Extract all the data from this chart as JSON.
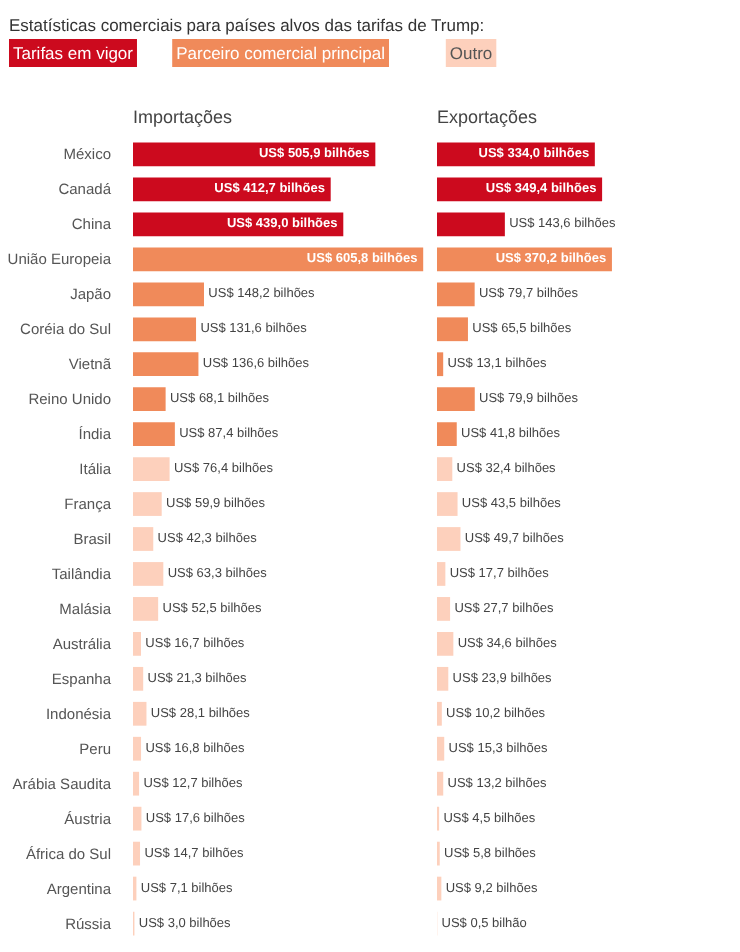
{
  "chart_data": [
    {
      "type": "bar",
      "orientation": "horizontal",
      "title": "Estatísticas comerciais para países alvos das tarifas de Trump:",
      "subtitle": "Importações",
      "legend": "top left",
      "grid": false,
      "categories": [
        "México",
        "Canadá",
        "China",
        "União Europeia",
        "Japão",
        "Coréia do Sul",
        "Vietnã",
        "Reino Unido",
        "Índia",
        "Itália",
        "França",
        "Brasil",
        "Tailândia",
        "Malásia",
        "Austrália",
        "Espanha",
        "Indonésia",
        "Peru",
        "Arábia Saudita",
        "Áustria",
        "África do Sul",
        "Argentina",
        "Rússia"
      ],
      "series": [
        {
          "name": "Tarifas em vigor",
          "color": "#cc0a1e",
          "values": [
            505.9,
            412.7,
            439.0,
            null,
            null,
            null,
            null,
            null,
            null,
            null,
            null,
            null,
            null,
            null,
            null,
            null,
            null,
            null,
            null,
            null,
            null,
            null,
            null
          ],
          "value_labels": [
            "US$ 505,9 bilhões",
            "US$ 412,7 bilhões",
            "US$ 439,0 bilhões",
            null,
            null,
            null,
            null,
            null,
            null,
            null,
            null,
            null,
            null,
            null,
            null,
            null,
            null,
            null,
            null,
            null,
            null,
            null,
            null
          ]
        },
        {
          "name": "Parceiro comercial principal",
          "color": "#f08a5a",
          "values": [
            null,
            null,
            null,
            605.8,
            148.2,
            131.6,
            136.6,
            68.1,
            87.4,
            null,
            null,
            null,
            null,
            null,
            null,
            null,
            null,
            null,
            null,
            null,
            null,
            null,
            null
          ],
          "value_labels": [
            null,
            null,
            null,
            "US$ 605,8 bilhões",
            "US$ 148,2 bilhões",
            "US$ 131,6 bilhões",
            "US$ 136,6 bilhões",
            "US$ 68,1 bilhões",
            "US$ 87,4 bilhões",
            null,
            null,
            null,
            null,
            null,
            null,
            null,
            null,
            null,
            null,
            null,
            null,
            null,
            null
          ]
        },
        {
          "name": "Outro",
          "color": "#fdd0bc",
          "values": [
            null,
            null,
            null,
            null,
            null,
            null,
            null,
            null,
            null,
            76.4,
            59.9,
            42.3,
            63.3,
            52.5,
            16.7,
            21.3,
            28.1,
            16.8,
            12.7,
            17.6,
            14.7,
            7.1,
            3.0
          ],
          "value_labels": [
            null,
            null,
            null,
            null,
            null,
            null,
            null,
            null,
            null,
            "US$ 76,4 bilhões",
            "US$ 59,9 bilhões",
            "US$ 42,3 bilhões",
            "US$ 63,3 bilhões",
            "US$ 52,5 bilhões",
            "US$ 16,7 bilhões",
            "US$ 21,3 bilhões",
            "US$ 28,1 bilhões",
            "US$ 16,8 bilhões",
            "US$ 12,7 bilhões",
            "US$ 17,6 bilhões",
            "US$ 14,7 bilhões",
            "US$ 7,1 bilhões",
            "US$ 3,0 bilhões"
          ]
        }
      ]
    },
    {
      "type": "bar",
      "orientation": "horizontal",
      "subtitle": "Exportações",
      "grid": false,
      "categories": [
        null,
        null,
        null,
        null,
        null,
        null,
        null,
        null,
        null,
        null,
        null,
        null,
        null,
        null,
        null,
        null,
        null,
        null,
        null,
        null,
        null,
        null,
        null
      ],
      "series": [
        {
          "color": "#cc0a1e",
          "values": [
            334.0,
            349.4,
            143.6,
            null,
            null,
            null,
            null,
            null,
            null,
            null,
            null,
            null,
            null,
            null,
            null,
            null,
            null,
            null,
            null,
            null,
            null,
            null,
            null
          ],
          "value_labels": [
            "US$ 334,0 bilhões",
            "US$ 349,4 bilhões",
            "US$ 143,6 bilhões",
            null,
            null,
            null,
            null,
            null,
            null,
            null,
            null,
            null,
            null,
            null,
            null,
            null,
            null,
            null,
            null,
            null,
            null,
            null,
            null
          ]
        },
        {
          "color": "#f08a5a",
          "values": [
            null,
            null,
            null,
            370.2,
            79.7,
            65.5,
            13.1,
            79.9,
            41.8,
            null,
            null,
            null,
            null,
            null,
            null,
            null,
            null,
            null,
            null,
            null,
            null,
            null,
            null
          ],
          "value_labels": [
            null,
            null,
            null,
            "US$ 370,2 bilhões",
            "US$ 79,7 bilhões",
            "US$ 65,5 bilhões",
            "US$ 13,1 bilhões",
            "US$ 79,9 bilhões",
            "US$ 41,8 bilhões",
            null,
            null,
            null,
            null,
            null,
            null,
            null,
            null,
            null,
            null,
            null,
            null,
            null,
            null
          ]
        },
        {
          "color": "#fdd0bc",
          "values": [
            null,
            null,
            null,
            null,
            null,
            null,
            null,
            null,
            null,
            32.4,
            43.5,
            49.7,
            17.7,
            27.7,
            34.6,
            23.9,
            10.2,
            15.3,
            13.2,
            4.5,
            5.8,
            9.2,
            0.5
          ],
          "value_labels": [
            null,
            null,
            null,
            null,
            null,
            null,
            null,
            null,
            null,
            "US$ 32,4 bilhões",
            "US$ 43,5 bilhões",
            "US$ 49,7 bilhões",
            "US$ 17,7 bilhões",
            "US$ 27,7 bilhões",
            "US$ 34,6 bilhões",
            "US$ 23,9 bilhões",
            "US$ 10,2 bilhões",
            "US$ 15,3 bilhões",
            "US$ 13,2 bilhões",
            "US$ 4,5 bilhões",
            "US$ 5,8 bilhões",
            "US$ 9,2 bilhões",
            "US$ 0,5 bilhão"
          ]
        }
      ]
    }
  ]
}
